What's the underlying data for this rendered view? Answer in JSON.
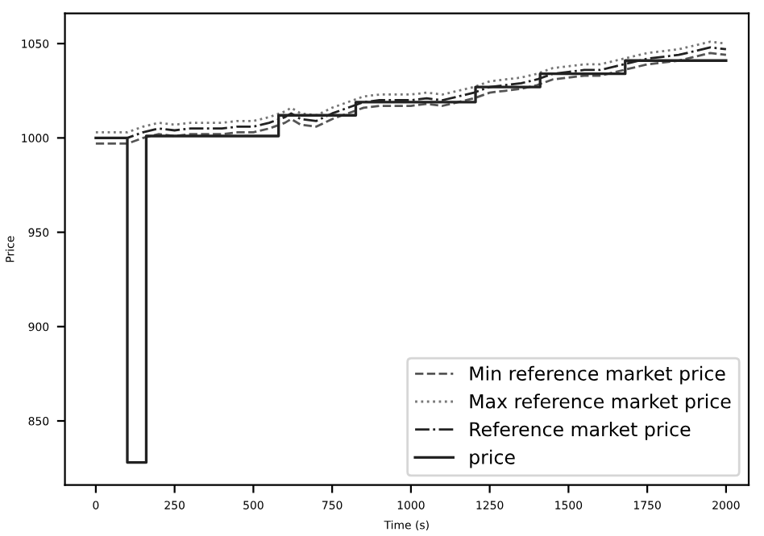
{
  "chart_data": {
    "type": "line",
    "xlabel": "Time (s)",
    "ylabel": "Price",
    "xlim": [
      -98,
      2072
    ],
    "ylim": [
      816,
      1066
    ],
    "xticks": [
      0,
      250,
      500,
      750,
      1000,
      1250,
      1500,
      1750,
      2000
    ],
    "yticks": [
      850,
      900,
      950,
      1000,
      1050
    ],
    "grid": false,
    "legend": "bottom right",
    "series": [
      {
        "name": "Min reference market price",
        "color": "#555555",
        "line_style": "dashed",
        "x": [
          0,
          50,
          100,
          150,
          200,
          250,
          300,
          350,
          400,
          450,
          500,
          550,
          600,
          620,
          650,
          700,
          750,
          800,
          850,
          900,
          950,
          1000,
          1050,
          1100,
          1150,
          1200,
          1250,
          1300,
          1350,
          1400,
          1450,
          1500,
          1550,
          1600,
          1650,
          1700,
          1750,
          1800,
          1850,
          1900,
          1950,
          2000
        ],
        "values": [
          997,
          997,
          997,
          1000,
          1002,
          1001,
          1002,
          1002,
          1002,
          1003,
          1003,
          1005,
          1008,
          1010,
          1007,
          1006,
          1010,
          1013,
          1016,
          1017,
          1017,
          1017,
          1018,
          1017,
          1019,
          1021,
          1024,
          1025,
          1026,
          1028,
          1031,
          1032,
          1033,
          1033,
          1035,
          1037,
          1039,
          1040,
          1041,
          1043,
          1045,
          1044
        ]
      },
      {
        "name": "Max reference market price",
        "color": "#777777",
        "line_style": "dotted",
        "x": [
          0,
          50,
          100,
          150,
          200,
          250,
          300,
          350,
          400,
          450,
          500,
          550,
          600,
          620,
          650,
          700,
          750,
          800,
          850,
          900,
          950,
          1000,
          1050,
          1100,
          1150,
          1200,
          1250,
          1300,
          1350,
          1400,
          1450,
          1500,
          1550,
          1600,
          1650,
          1700,
          1750,
          1800,
          1850,
          1900,
          1950,
          2000
        ],
        "values": [
          1003,
          1003,
          1003,
          1006,
          1008,
          1007,
          1008,
          1008,
          1008,
          1009,
          1009,
          1011,
          1014,
          1016,
          1013,
          1012,
          1016,
          1019,
          1022,
          1023,
          1023,
          1023,
          1024,
          1023,
          1025,
          1027,
          1030,
          1031,
          1032,
          1034,
          1037,
          1038,
          1039,
          1039,
          1041,
          1043,
          1045,
          1046,
          1047,
          1049,
          1051,
          1050
        ]
      },
      {
        "name": "Reference market price",
        "color": "#222222",
        "line_style": "dashdot",
        "x": [
          0,
          50,
          100,
          150,
          200,
          250,
          300,
          350,
          400,
          450,
          500,
          550,
          600,
          620,
          650,
          700,
          750,
          800,
          850,
          900,
          950,
          1000,
          1050,
          1100,
          1150,
          1200,
          1250,
          1300,
          1350,
          1400,
          1450,
          1500,
          1550,
          1600,
          1650,
          1700,
          1750,
          1800,
          1850,
          1900,
          1950,
          2000
        ],
        "values": [
          1000,
          1000,
          1000,
          1003,
          1005,
          1004,
          1005,
          1005,
          1005,
          1006,
          1006,
          1008,
          1011,
          1013,
          1010,
          1009,
          1013,
          1016,
          1019,
          1020,
          1020,
          1020,
          1021,
          1020,
          1022,
          1024,
          1027,
          1028,
          1029,
          1031,
          1034,
          1035,
          1036,
          1036,
          1038,
          1040,
          1042,
          1043,
          1044,
          1046,
          1048,
          1047
        ]
      },
      {
        "name": "price",
        "color": "#222222",
        "line_style": "solid",
        "type": "step",
        "x": [
          0,
          100,
          160,
          580,
          825,
          1205,
          1410,
          1680,
          2000
        ],
        "values": [
          1000,
          828,
          1001,
          1012,
          1019,
          1027,
          1034,
          1041,
          1041
        ]
      }
    ]
  }
}
